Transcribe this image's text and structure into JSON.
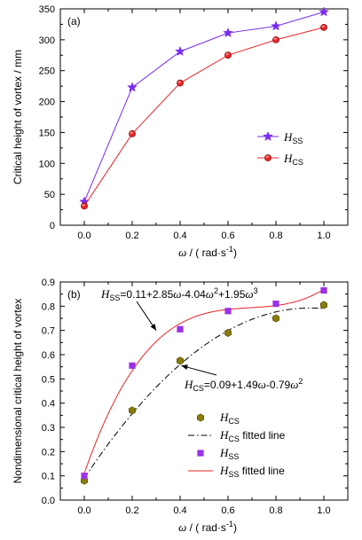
{
  "colors": {
    "hss": "#7b2cf2",
    "hcs": "#e8262a",
    "hcs_nd_marker": "#8a7c0a",
    "hcs_fit": "#000000",
    "hss_fit": "#e8262a",
    "hss_nd_marker": "#9b30e8"
  },
  "chart_data": [
    {
      "id": "a",
      "type": "line",
      "panel_label": "(a)",
      "xlabel_symbol": "ω",
      "xlabel_unit": " / ( rad·s",
      "xlabel_exp": "-1",
      "xlabel_close": ")",
      "ylabel": "Critical height of vortex / mm",
      "xlim": [
        -0.1,
        1.1
      ],
      "ylim": [
        0,
        350
      ],
      "xticks": [
        0.0,
        0.2,
        0.4,
        0.6,
        0.8,
        1.0
      ],
      "xtick_labels": [
        "0.0",
        "0.2",
        "0.4",
        "0.6",
        "0.8",
        "1.0"
      ],
      "yticks": [
        0,
        50,
        100,
        150,
        200,
        250,
        300,
        350
      ],
      "ytick_labels": [
        "0",
        "50",
        "100",
        "150",
        "200",
        "250",
        "300",
        "350"
      ],
      "legend_position": "right-middle",
      "series": [
        {
          "name": "HSS",
          "legend_base": "H",
          "legend_sub": "SS",
          "marker": "star",
          "color_key": "hss",
          "x": [
            0.0,
            0.2,
            0.4,
            0.6,
            0.8,
            1.0
          ],
          "y": [
            38,
            223,
            281,
            311,
            322,
            345
          ]
        },
        {
          "name": "HCS",
          "legend_base": "H",
          "legend_sub": "CS",
          "marker": "circle",
          "color_key": "hcs",
          "x": [
            0.0,
            0.2,
            0.4,
            0.6,
            0.8,
            1.0
          ],
          "y": [
            31,
            148,
            230,
            275,
            300,
            320
          ]
        }
      ]
    },
    {
      "id": "b",
      "type": "scatter",
      "panel_label": "(b)",
      "xlabel_symbol": "ω",
      "xlabel_unit": " / ( rad·s",
      "xlabel_exp": "-1",
      "xlabel_close": ")",
      "ylabel": "Nondimensional critical height of vortex",
      "xlim": [
        -0.1,
        1.1
      ],
      "ylim": [
        0.0,
        0.9
      ],
      "xticks": [
        0.0,
        0.2,
        0.4,
        0.6,
        0.8,
        1.0
      ],
      "xtick_labels": [
        "0.0",
        "0.2",
        "0.4",
        "0.6",
        "0.8",
        "1.0"
      ],
      "yticks": [
        0.0,
        0.1,
        0.2,
        0.3,
        0.4,
        0.5,
        0.6,
        0.7,
        0.8,
        0.9
      ],
      "ytick_labels": [
        "0.0",
        "0.1",
        "0.2",
        "0.3",
        "0.4",
        "0.5",
        "0.6",
        "0.7",
        "0.8",
        "0.9"
      ],
      "legend_position": "bottom-right",
      "points": [
        {
          "name": "HCS",
          "legend_base": "H",
          "legend_sub": "CS",
          "marker": "hexagon",
          "color_key": "hcs_nd_marker",
          "x": [
            0.0,
            0.2,
            0.4,
            0.6,
            0.8,
            1.0
          ],
          "y": [
            0.08,
            0.37,
            0.575,
            0.69,
            0.75,
            0.805
          ]
        },
        {
          "name": "HSS",
          "legend_base": "H",
          "legend_sub": "SS",
          "marker": "square",
          "color_key": "hss_nd_marker",
          "x": [
            0.0,
            0.2,
            0.4,
            0.6,
            0.8,
            1.0
          ],
          "y": [
            0.1,
            0.555,
            0.705,
            0.78,
            0.81,
            0.865
          ]
        }
      ],
      "fits": [
        {
          "name": "HCS fitted line",
          "legend_base": "H",
          "legend_sub": "CS",
          "legend_suffix": " fitted line",
          "style": "dashdot",
          "color_key": "hcs_fit",
          "coeffs": [
            0.09,
            1.49,
            -0.79
          ]
        },
        {
          "name": "HSS fitted line",
          "legend_base": "H",
          "legend_sub": "SS",
          "legend_suffix": " fitted line",
          "style": "solid",
          "color_key": "hss_fit",
          "coeffs": [
            0.11,
            2.85,
            -4.04,
            1.95
          ]
        }
      ],
      "annotations": [
        {
          "id": "hss_eq",
          "parts": [
            {
              "t": "H",
              "k": "i"
            },
            {
              "t": "SS",
              "k": "sub"
            },
            {
              "t": "=0.11+2.85",
              "k": "n"
            },
            {
              "t": "ω",
              "k": "i"
            },
            {
              "t": "-4.04",
              "k": "n"
            },
            {
              "t": "ω",
              "k": "i"
            },
            {
              "t": "2",
              "k": "sup"
            },
            {
              "t": "+1.95",
              "k": "n"
            },
            {
              "t": "ω",
              "k": "i"
            },
            {
              "t": "3",
              "k": "sup"
            }
          ],
          "arrow_to": [
            0.3,
            0.7
          ]
        },
        {
          "id": "hcs_eq",
          "parts": [
            {
              "t": "H",
              "k": "i"
            },
            {
              "t": "CS",
              "k": "sub"
            },
            {
              "t": "=0.09+1.49",
              "k": "n"
            },
            {
              "t": "ω",
              "k": "i"
            },
            {
              "t": "-0.79",
              "k": "n"
            },
            {
              "t": "ω",
              "k": "i"
            },
            {
              "t": "2",
              "k": "sup"
            }
          ],
          "arrow_to": [
            0.405,
            0.555
          ]
        }
      ]
    }
  ]
}
